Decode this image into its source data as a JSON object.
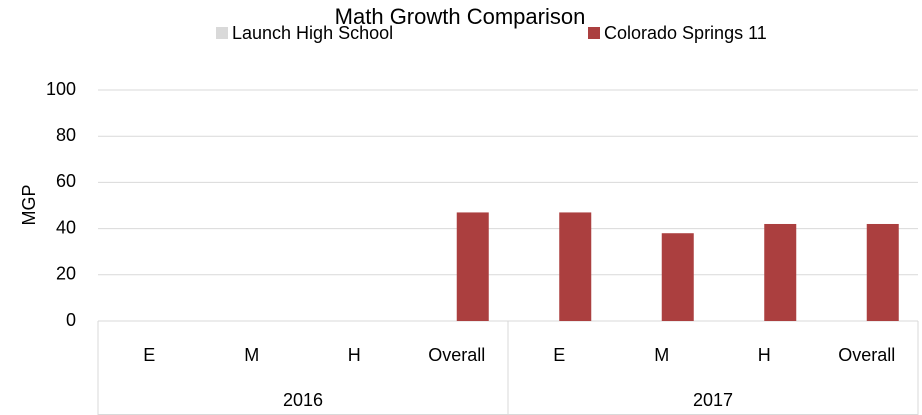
{
  "chart_data": {
    "type": "bar",
    "title": "Math Growth Comparison",
    "y_label": "MGP",
    "groups": [
      {
        "name": "2016",
        "categories": [
          "E",
          "M",
          "H",
          "Overall"
        ]
      },
      {
        "name": "2017",
        "categories": [
          "E",
          "M",
          "H",
          "Overall"
        ]
      }
    ],
    "series": [
      {
        "name": "Launch High School",
        "color": "#d9d9d9",
        "values": [
          null,
          null,
          null,
          null,
          null,
          null,
          null,
          null
        ]
      },
      {
        "name": "Colorado Springs 11",
        "color": "#ab3f3f",
        "values": [
          null,
          null,
          null,
          47,
          47,
          38,
          42,
          42
        ]
      }
    ],
    "ylim": [
      0,
      100
    ],
    "yticks": [
      0,
      20,
      40,
      60,
      80,
      100
    ],
    "grid": true,
    "legend": "top"
  }
}
